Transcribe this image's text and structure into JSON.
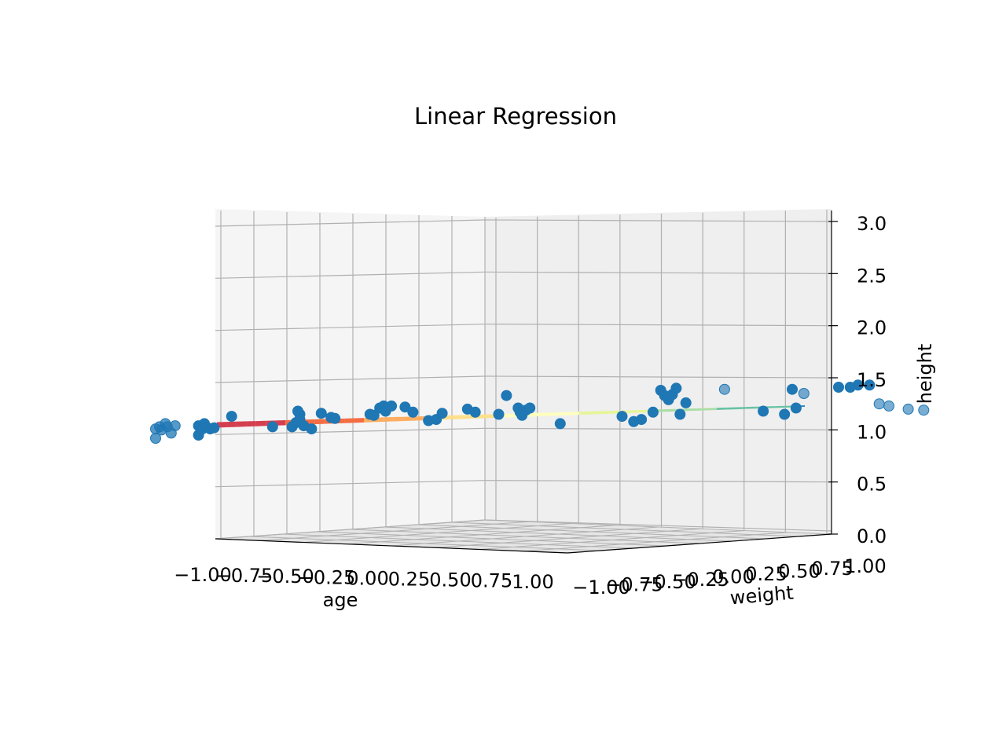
{
  "chart_data": {
    "type": "scatter",
    "projection": "3d",
    "title": "Linear Regression",
    "xlabel": "age",
    "ylabel": "weight",
    "zlabel": "height",
    "xlim": [
      -1.0,
      1.0
    ],
    "ylim": [
      -1.0,
      1.0
    ],
    "zlim": [
      0.0,
      3.0
    ],
    "xticks": [
      "−1.00",
      "−0.75",
      "−0.50",
      "−0.25",
      "0.00",
      "0.25",
      "0.50",
      "0.75",
      "1.00"
    ],
    "yticks": [
      "−1.00",
      "−0.75",
      "−0.50",
      "−0.25",
      "0.00",
      "0.25",
      "0.50",
      "0.75",
      "1.00"
    ],
    "zticks": [
      "0.0",
      "0.5",
      "1.0",
      "1.5",
      "2.0",
      "2.5",
      "3.0"
    ],
    "grid": true,
    "surface": {
      "colormap": "Spectral",
      "plane": "height = 1.19 + 0.07*age + 0.05*weight",
      "color_stops": [
        "#9e0142",
        "#d53e4f",
        "#f46d43",
        "#fdae61",
        "#fee08b",
        "#ffffbf",
        "#e6f598",
        "#abdda4",
        "#66c2a5",
        "#3288bd",
        "#5e4fa2"
      ]
    },
    "points": [
      {
        "age": -1.0,
        "height": 1.1
      },
      {
        "age": -1.0,
        "height": 1.01
      },
      {
        "age": -0.98,
        "height": 1.12
      },
      {
        "age": -0.97,
        "height": 1.09
      },
      {
        "age": -0.95,
        "height": 1.15
      },
      {
        "age": -0.94,
        "height": 1.12
      },
      {
        "age": -0.92,
        "height": 1.06
      },
      {
        "age": -0.9,
        "height": 1.13
      },
      {
        "age": -0.78,
        "height": 1.13
      },
      {
        "age": -0.78,
        "height": 1.04
      },
      {
        "age": -0.76,
        "height": 1.1
      },
      {
        "age": -0.75,
        "height": 1.15
      },
      {
        "age": -0.74,
        "height": 1.12
      },
      {
        "age": -0.72,
        "height": 1.1
      },
      {
        "age": -0.7,
        "height": 1.11
      },
      {
        "age": -0.61,
        "height": 1.22
      },
      {
        "age": -0.4,
        "height": 1.12
      },
      {
        "age": -0.3,
        "height": 1.12
      },
      {
        "age": -0.28,
        "height": 1.16
      },
      {
        "age": -0.27,
        "height": 1.27
      },
      {
        "age": -0.26,
        "height": 1.24
      },
      {
        "age": -0.26,
        "height": 1.19
      },
      {
        "age": -0.24,
        "height": 1.13
      },
      {
        "age": -0.2,
        "height": 1.1
      },
      {
        "age": -0.15,
        "height": 1.25
      },
      {
        "age": -0.1,
        "height": 1.21
      },
      {
        "age": -0.08,
        "height": 1.2
      },
      {
        "age": 0.1,
        "height": 1.24
      },
      {
        "age": 0.12,
        "height": 1.23
      },
      {
        "age": 0.15,
        "height": 1.3
      },
      {
        "age": 0.17,
        "height": 1.32
      },
      {
        "age": 0.18,
        "height": 1.27
      },
      {
        "age": 0.21,
        "height": 1.32
      },
      {
        "age": 0.28,
        "height": 1.31
      },
      {
        "age": 0.32,
        "height": 1.26
      },
      {
        "age": 0.4,
        "height": 1.18
      },
      {
        "age": 0.44,
        "height": 1.19
      },
      {
        "age": 0.47,
        "height": 1.25
      },
      {
        "age": 0.6,
        "height": 1.29
      },
      {
        "age": 0.64,
        "height": 1.26
      },
      {
        "age": 0.76,
        "height": 1.24
      },
      {
        "age": 0.8,
        "height": 1.42
      },
      {
        "age": 0.86,
        "height": 1.3
      },
      {
        "age": 0.87,
        "height": 1.26
      },
      {
        "age": 0.88,
        "height": 1.23
      },
      {
        "age": 0.9,
        "height": 1.28
      },
      {
        "age": 0.92,
        "height": 1.3
      }
    ],
    "points_right": [
      {
        "weight": -0.7,
        "height": 1.15
      },
      {
        "weight": -0.38,
        "height": 1.22
      },
      {
        "weight": -0.32,
        "height": 1.17
      },
      {
        "weight": -0.28,
        "height": 1.19
      },
      {
        "weight": -0.22,
        "height": 1.26
      },
      {
        "weight": -0.18,
        "height": 1.47
      },
      {
        "weight": -0.16,
        "height": 1.42
      },
      {
        "weight": -0.14,
        "height": 1.38
      },
      {
        "weight": -0.12,
        "height": 1.43
      },
      {
        "weight": -0.1,
        "height": 1.49
      },
      {
        "weight": -0.08,
        "height": 1.24
      },
      {
        "weight": -0.05,
        "height": 1.35
      },
      {
        "weight": 0.15,
        "height": 1.48
      },
      {
        "weight": 0.35,
        "height": 1.27
      },
      {
        "weight": 0.46,
        "height": 1.24
      },
      {
        "weight": 0.5,
        "height": 1.48
      },
      {
        "weight": 0.52,
        "height": 1.3
      },
      {
        "weight": 0.56,
        "height": 1.44
      },
      {
        "weight": 0.74,
        "height": 1.5
      },
      {
        "weight": 0.8,
        "height": 1.5
      },
      {
        "weight": 0.84,
        "height": 1.52
      },
      {
        "weight": 0.9,
        "height": 1.52
      },
      {
        "weight": 0.95,
        "height": 1.34
      },
      {
        "weight": 1.0,
        "height": 1.32
      },
      {
        "weight": 1.1,
        "height": 1.29
      },
      {
        "weight": 1.18,
        "height": 1.28
      }
    ],
    "marker_color": "#1f77b4"
  }
}
